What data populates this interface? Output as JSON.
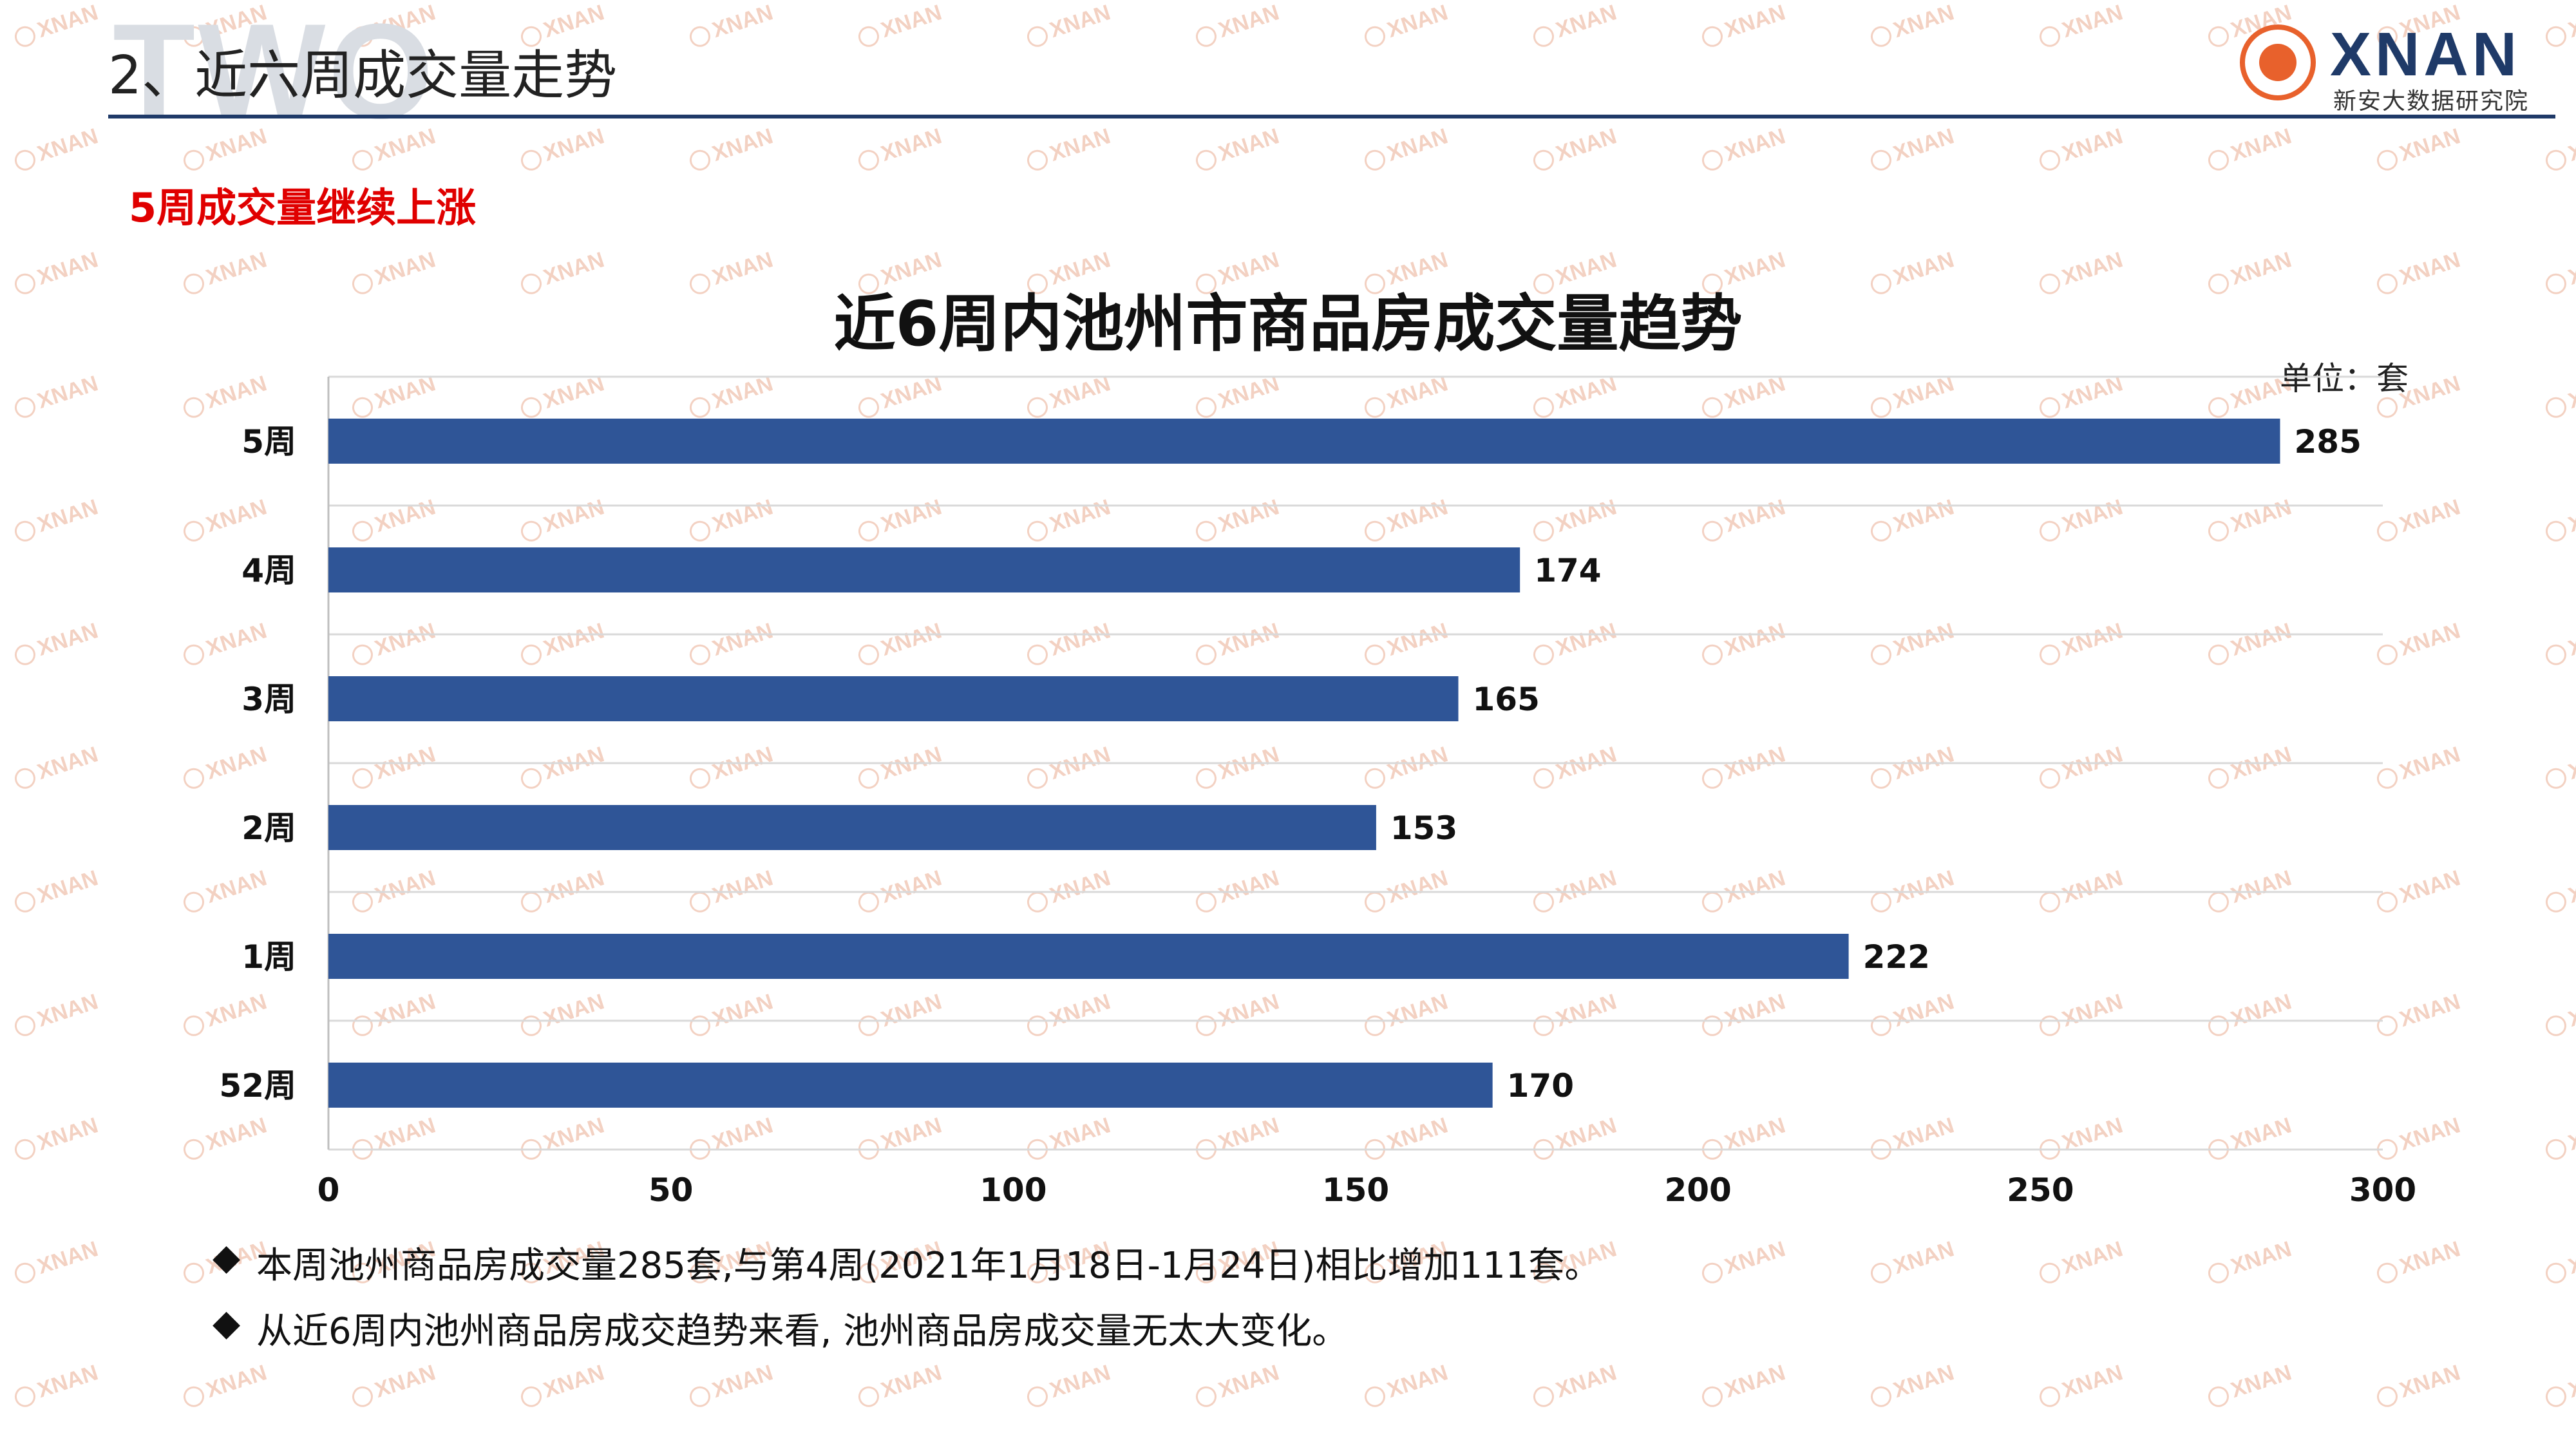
{
  "header": {
    "bg_text": "TWO",
    "title": "2、近六周成交量走势"
  },
  "logo": {
    "name": "XNAN",
    "subtitle": "新安大数据研究院"
  },
  "watermark": "XNAN",
  "subtitle": "5周成交量继续上涨",
  "colors": {
    "bar": "#2f5597",
    "accent_red": "#e00000",
    "header_line": "#1f3a68",
    "logo_orange": "#e8612c"
  },
  "chart_data": {
    "type": "bar",
    "orientation": "horizontal",
    "title": "近6周内池州市商品房成交量趋势",
    "unit_label": "单位：套",
    "categories": [
      "5周",
      "4周",
      "3周",
      "2周",
      "1周",
      "52周"
    ],
    "values": [
      285,
      174,
      165,
      153,
      222,
      170
    ],
    "xlim": [
      0,
      300
    ],
    "xticks": [
      "0",
      "50",
      "100",
      "150",
      "200",
      "250",
      "300"
    ],
    "grid": true,
    "data_labels": true
  },
  "notes": {
    "bullet_icon": "diamond-icon",
    "bullet_glyph": "◆",
    "items": [
      "本周池州商品房成交量285套,与第4周(2021年1月18日-1月24日)相比增加111套。",
      "从近6周内池州商品房成交趋势来看, 池州商品房成交量无太大变化。"
    ]
  }
}
